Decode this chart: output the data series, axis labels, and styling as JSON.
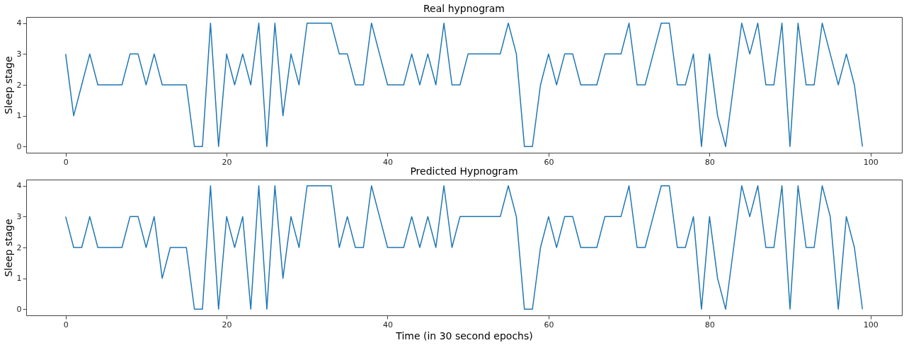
{
  "chart_data": [
    {
      "type": "line",
      "title": "Real hypnogram",
      "ylabel": "Sleep stage",
      "x": [
        0,
        1,
        2,
        3,
        4,
        5,
        6,
        7,
        8,
        9,
        10,
        11,
        12,
        13,
        14,
        15,
        16,
        17,
        18,
        19,
        20,
        21,
        22,
        23,
        24,
        25,
        26,
        27,
        28,
        29,
        30,
        31,
        32,
        33,
        34,
        35,
        36,
        37,
        38,
        39,
        40,
        41,
        42,
        43,
        44,
        45,
        46,
        47,
        48,
        49,
        50,
        51,
        52,
        53,
        54,
        55,
        56,
        57,
        58,
        59,
        60,
        61,
        62,
        63,
        64,
        65,
        66,
        67,
        68,
        69,
        70,
        71,
        72,
        73,
        74,
        75,
        76,
        77,
        78,
        79,
        80,
        81,
        82,
        83,
        84,
        85,
        86,
        87,
        88,
        89,
        90,
        91,
        92,
        93,
        94,
        95,
        96,
        97,
        98,
        99
      ],
      "series": [
        {
          "color": "#1f77b4",
          "values": [
            3,
            1,
            2,
            3,
            2,
            2,
            2,
            2,
            3,
            3,
            2,
            3,
            2,
            2,
            2,
            2,
            0,
            0,
            4,
            0,
            3,
            2,
            3,
            2,
            4,
            0,
            4,
            1,
            3,
            2,
            4,
            4,
            4,
            4,
            3,
            3,
            2,
            2,
            4,
            3,
            2,
            2,
            2,
            3,
            2,
            3,
            2,
            4,
            2,
            2,
            3,
            3,
            3,
            3,
            3,
            4,
            3,
            0,
            0,
            2,
            3,
            2,
            3,
            3,
            2,
            2,
            2,
            3,
            3,
            3,
            4,
            2,
            2,
            3,
            4,
            4,
            2,
            2,
            3,
            0,
            3,
            1,
            0,
            2,
            4,
            3,
            4,
            2,
            2,
            4,
            0,
            4,
            2,
            2,
            4,
            3,
            2,
            3,
            2,
            0
          ]
        }
      ],
      "xlim": [
        -4.9,
        103.9
      ],
      "xticks": [
        0,
        20,
        40,
        60,
        80,
        100
      ],
      "ylim": [
        -0.2,
        4.2
      ],
      "yticks": [
        0,
        1,
        2,
        3,
        4
      ],
      "grid": false
    },
    {
      "type": "line",
      "title": "Predicted Hypnogram",
      "xlabel": "Time (in 30 second epochs)",
      "ylabel": "Sleep stage",
      "x": [
        0,
        1,
        2,
        3,
        4,
        5,
        6,
        7,
        8,
        9,
        10,
        11,
        12,
        13,
        14,
        15,
        16,
        17,
        18,
        19,
        20,
        21,
        22,
        23,
        24,
        25,
        26,
        27,
        28,
        29,
        30,
        31,
        32,
        33,
        34,
        35,
        36,
        37,
        38,
        39,
        40,
        41,
        42,
        43,
        44,
        45,
        46,
        47,
        48,
        49,
        50,
        51,
        52,
        53,
        54,
        55,
        56,
        57,
        58,
        59,
        60,
        61,
        62,
        63,
        64,
        65,
        66,
        67,
        68,
        69,
        70,
        71,
        72,
        73,
        74,
        75,
        76,
        77,
        78,
        79,
        80,
        81,
        82,
        83,
        84,
        85,
        86,
        87,
        88,
        89,
        90,
        91,
        92,
        93,
        94,
        95,
        96,
        97,
        98,
        99
      ],
      "series": [
        {
          "color": "#1f77b4",
          "values": [
            3,
            2,
            2,
            3,
            2,
            2,
            2,
            2,
            3,
            3,
            2,
            3,
            1,
            2,
            2,
            2,
            0,
            0,
            4,
            0,
            3,
            2,
            3,
            0,
            4,
            0,
            4,
            1,
            3,
            2,
            4,
            4,
            4,
            4,
            2,
            3,
            2,
            2,
            4,
            3,
            2,
            2,
            2,
            3,
            2,
            3,
            2,
            4,
            2,
            3,
            3,
            3,
            3,
            3,
            3,
            4,
            3,
            0,
            0,
            2,
            3,
            2,
            3,
            3,
            2,
            2,
            2,
            3,
            3,
            3,
            4,
            2,
            2,
            3,
            4,
            4,
            2,
            2,
            3,
            0,
            3,
            1,
            0,
            2,
            4,
            3,
            4,
            2,
            2,
            4,
            0,
            4,
            2,
            2,
            4,
            3,
            0,
            3,
            2,
            0
          ]
        }
      ],
      "xlim": [
        -4.9,
        103.9
      ],
      "xticks": [
        0,
        20,
        40,
        60,
        80,
        100
      ],
      "ylim": [
        -0.2,
        4.2
      ],
      "yticks": [
        0,
        1,
        2,
        3,
        4
      ],
      "grid": false
    }
  ]
}
